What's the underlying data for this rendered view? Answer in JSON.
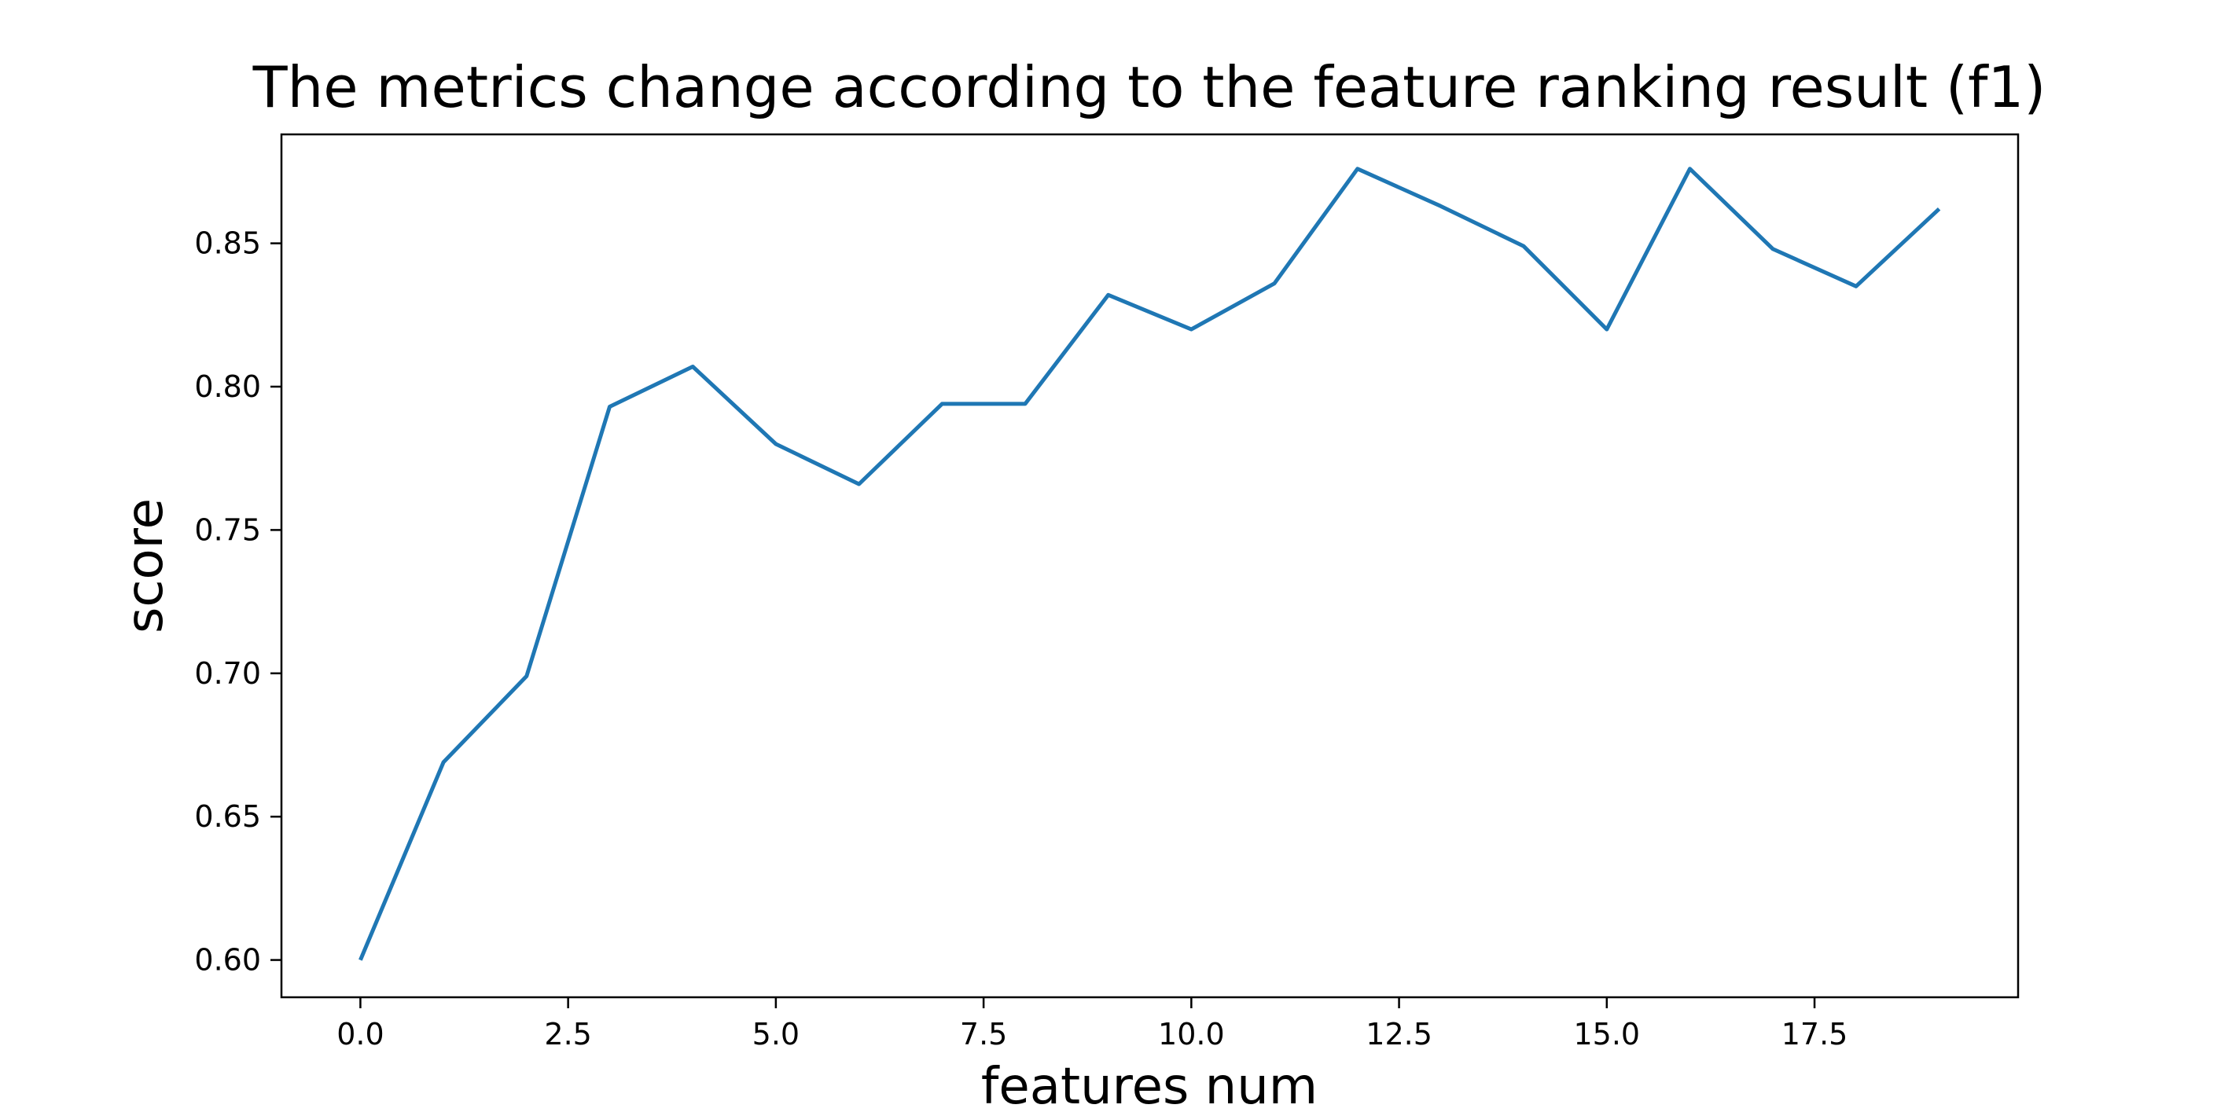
{
  "chart_data": {
    "type": "line",
    "title": "The metrics change according to the feature ranking result (f1)",
    "xlabel": "features num",
    "ylabel": "score",
    "xlim": [
      -0.95,
      19.95
    ],
    "ylim": [
      0.587,
      0.888
    ],
    "xticks": [
      0.0,
      2.5,
      5.0,
      7.5,
      10.0,
      12.5,
      15.0,
      17.5
    ],
    "xtick_labels": [
      "0.0",
      "2.5",
      "5.0",
      "7.5",
      "10.0",
      "12.5",
      "15.0",
      "17.5"
    ],
    "yticks": [
      0.6,
      0.65,
      0.7,
      0.75,
      0.8,
      0.85
    ],
    "ytick_labels": [
      "0.60",
      "0.65",
      "0.70",
      "0.75",
      "0.80",
      "0.85"
    ],
    "grid": false,
    "series": [
      {
        "color": "#1f77b4",
        "x": [
          0,
          1,
          2,
          3,
          4,
          5,
          6,
          7,
          8,
          9,
          10,
          11,
          12,
          13,
          14,
          15,
          16,
          17,
          18,
          19
        ],
        "y": [
          0.6,
          0.669,
          0.699,
          0.793,
          0.807,
          0.78,
          0.766,
          0.794,
          0.794,
          0.832,
          0.82,
          0.836,
          0.876,
          0.863,
          0.849,
          0.82,
          0.876,
          0.848,
          0.835,
          0.862
        ]
      }
    ]
  }
}
